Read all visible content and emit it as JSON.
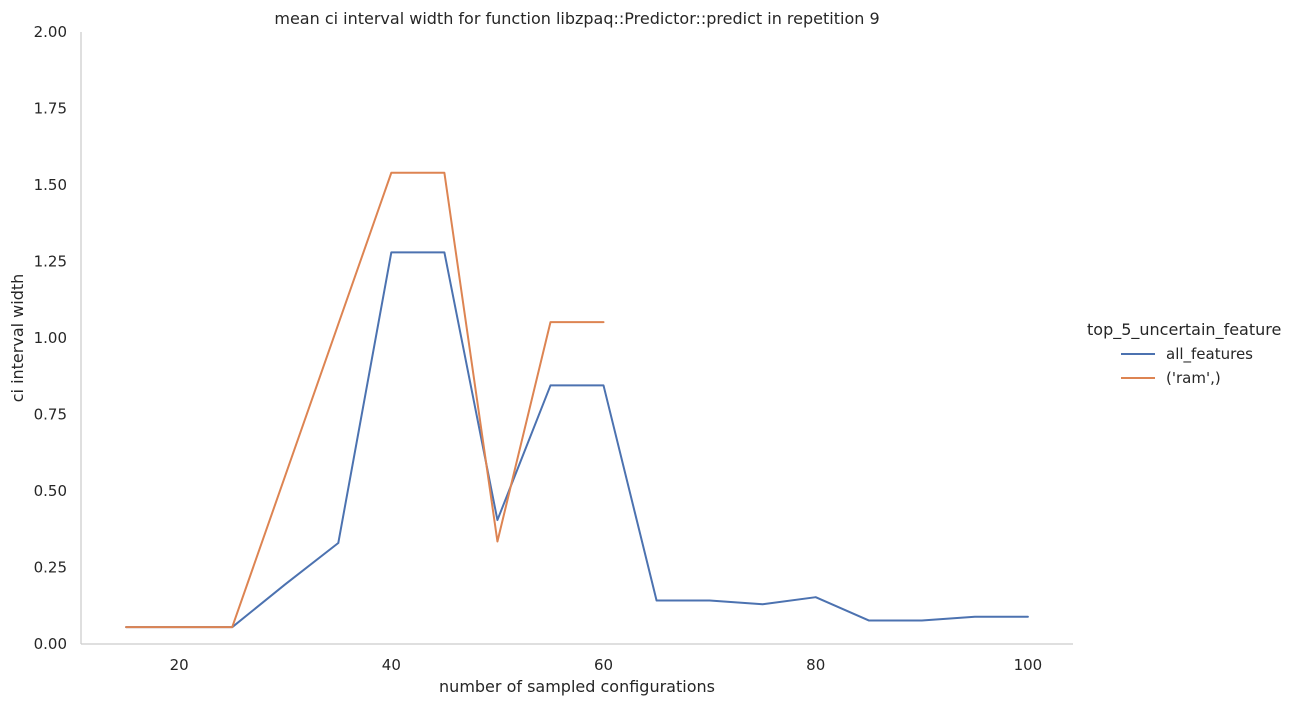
{
  "chart_data": {
    "type": "line",
    "title": "mean ci interval width for function libzpaq::Predictor::predict in repetition 9",
    "xlabel": "number of sampled configurations",
    "ylabel": "ci interval width",
    "xlim": [
      10.75,
      104.25
    ],
    "ylim": [
      0,
      2.0
    ],
    "x_ticks": [
      20,
      40,
      60,
      80,
      100
    ],
    "y_ticks": [
      0.0,
      0.25,
      0.5,
      0.75,
      1.0,
      1.25,
      1.5,
      1.75,
      2.0
    ],
    "y_tick_labels": [
      "0.00",
      "0.25",
      "0.50",
      "0.75",
      "1.00",
      "1.25",
      "1.50",
      "1.75",
      "2.00"
    ],
    "grid": false,
    "legend_title": "top_5_uncertain_feature",
    "legend_position": "right",
    "series": [
      {
        "name": "all_features",
        "color": "#4c72b0",
        "x": [
          15,
          20,
          25,
          30,
          35,
          40,
          45,
          50,
          55,
          60,
          65,
          70,
          75,
          80,
          85,
          90,
          95,
          100
        ],
        "y": [
          0.055,
          0.055,
          0.055,
          0.195,
          0.33,
          1.28,
          1.28,
          0.405,
          0.845,
          0.845,
          0.142,
          0.142,
          0.13,
          0.153,
          0.077,
          0.077,
          0.089,
          0.089
        ]
      },
      {
        "name": "('ram',)",
        "color": "#dd8452",
        "x": [
          15,
          20,
          25,
          30,
          35,
          40,
          45,
          50,
          55,
          60
        ],
        "y": [
          0.055,
          0.055,
          0.055,
          0.55,
          1.045,
          1.54,
          1.54,
          0.335,
          1.052,
          1.052
        ]
      }
    ]
  }
}
